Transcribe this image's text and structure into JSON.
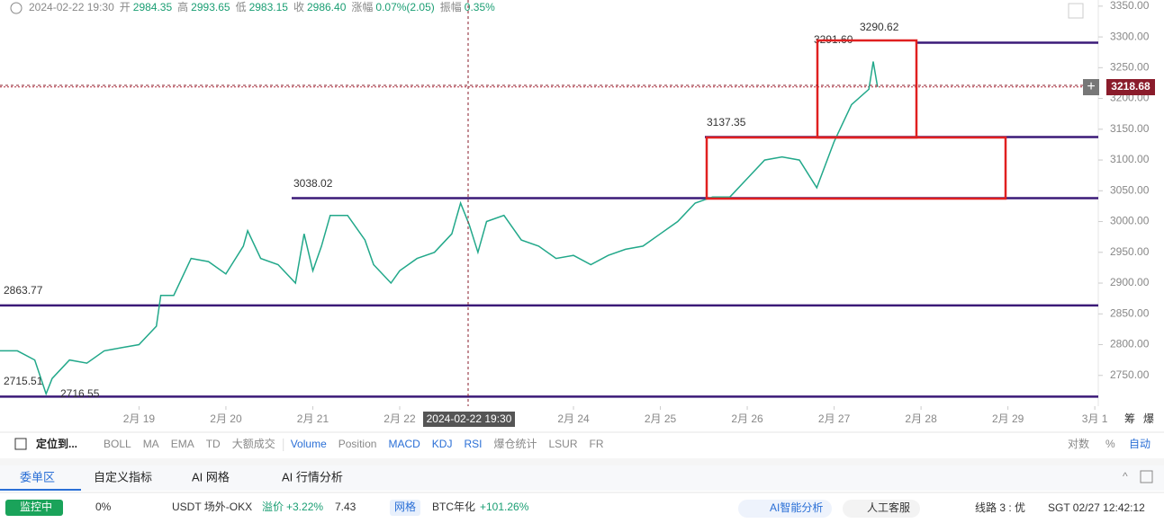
{
  "header": {
    "datetime": "2024-02-22 19:30",
    "items": [
      {
        "k": "开",
        "v": "2984.35"
      },
      {
        "k": "高",
        "v": "2993.65"
      },
      {
        "k": "低",
        "v": "2983.15"
      },
      {
        "k": "收",
        "v": "2986.40"
      },
      {
        "k": "涨幅",
        "v": "0.07%(2.05)"
      },
      {
        "k": "振幅",
        "v": "0.35%"
      }
    ]
  },
  "chart_data": {
    "type": "line",
    "x": [
      -1.6,
      -1.4,
      -1.2,
      -1.07,
      -1.0,
      -0.8,
      -0.6,
      -0.4,
      -0.2,
      0,
      0.2,
      0.25,
      0.4,
      0.6,
      0.8,
      1.0,
      1.2,
      1.25,
      1.4,
      1.6,
      1.8,
      1.9,
      2.0,
      2.1,
      2.2,
      2.4,
      2.6,
      2.7,
      2.9,
      3.0,
      3.2,
      3.4,
      3.6,
      3.7,
      3.8,
      3.9,
      4.0,
      4.2,
      4.4,
      4.6,
      4.8,
      5.0,
      5.2,
      5.4,
      5.6,
      5.8,
      6.0,
      6.2,
      6.4,
      6.6,
      6.8,
      7.0,
      7.2,
      7.4,
      7.6,
      7.8,
      8.0,
      8.2,
      8.4,
      8.45,
      8.5
    ],
    "series": [
      {
        "color": "#22a88a",
        "values": [
          2790,
          2790,
          2775,
          2720,
          2745,
          2775,
          2770,
          2790,
          2795,
          2800,
          2830,
          2880,
          2880,
          2940,
          2935,
          2915,
          2960,
          2985,
          2940,
          2930,
          2900,
          2980,
          2920,
          2960,
          3010,
          3010,
          2970,
          2930,
          2900,
          2920,
          2940,
          2950,
          2980,
          3030,
          2995,
          2950,
          3000,
          3010,
          2970,
          2960,
          2940,
          2945,
          2930,
          2945,
          2955,
          2960,
          2980,
          3000,
          3030,
          3040,
          3040,
          3070,
          3100,
          3105,
          3100,
          3055,
          3130,
          3190,
          3215,
          3260,
          3218.68
        ]
      }
    ],
    "xlim": [
      -1.6,
      11.04
    ],
    "ylim": [
      2700,
      3360
    ],
    "xticks": [
      {
        "value": 0,
        "label": "2月 19"
      },
      {
        "value": 1,
        "label": "2月 20"
      },
      {
        "value": 2,
        "label": "2月 21"
      },
      {
        "value": 3,
        "label": "2月 22"
      },
      {
        "value": 5,
        "label": "2月 24"
      },
      {
        "value": 6,
        "label": "2月 25"
      },
      {
        "value": 7,
        "label": "2月 26"
      },
      {
        "value": 8,
        "label": "2月 27"
      },
      {
        "value": 9,
        "label": "2月 28"
      },
      {
        "value": 10,
        "label": "2月 29"
      },
      {
        "value": 11,
        "label": "3月 1"
      }
    ],
    "yticks": [
      {
        "value": 3350,
        "label": "3350.00"
      },
      {
        "value": 3300,
        "label": "3300.00"
      },
      {
        "value": 3250,
        "label": "3250.00"
      },
      {
        "value": 3200,
        "label": "3200.00"
      },
      {
        "value": 3150,
        "label": "3150.00"
      },
      {
        "value": 3100,
        "label": "3100.00"
      },
      {
        "value": 3050,
        "label": "3050.00"
      },
      {
        "value": 3000,
        "label": "3000.00"
      },
      {
        "value": 2950,
        "label": "2950.00"
      },
      {
        "value": 2900,
        "label": "2900.00"
      },
      {
        "value": 2850,
        "label": "2850.00"
      },
      {
        "value": 2800,
        "label": "2800.00"
      },
      {
        "value": 2750,
        "label": "2750.00"
      }
    ],
    "levels": [
      3290.62,
      3137.35,
      3038.02,
      2863.77,
      2715.51
    ],
    "level_color": "#3b1a78",
    "price_labels": [
      {
        "value": 3291.6,
        "label": "3291.60"
      },
      {
        "value": 2716.55,
        "label": "2716.55"
      }
    ],
    "last_price": 3218.68,
    "crosshair_label": "2024-02-22 19:30",
    "axis_extra": [
      "筹",
      "爆"
    ]
  },
  "toolbar": {
    "locate": "定位到...",
    "group1": [
      "BOLL",
      "MA",
      "EMA",
      "TD",
      "大额成交"
    ],
    "group2": [
      "Volume",
      "Position",
      "MACD",
      "KDJ",
      "RSI",
      "爆仓统计",
      "LSUR",
      "FR"
    ],
    "right": [
      "对数",
      "%",
      "自动"
    ]
  },
  "tabs": [
    "委单区",
    "自定义指标",
    "AI 网格",
    "AI 行情分析"
  ],
  "status": {
    "monitor": "监控中",
    "pct": "0%",
    "market": "USDT 场外-OKX",
    "premium_label": "溢价",
    "premium": "+3.22%",
    "rate": "7.43",
    "grid": "网格",
    "btc_label": "BTC年化",
    "btc": "+101.26%",
    "ai": "AI智能分析",
    "service": "人工客服",
    "line": "线路 3 : 优",
    "time": "SGT 02/27 12:42:12"
  }
}
